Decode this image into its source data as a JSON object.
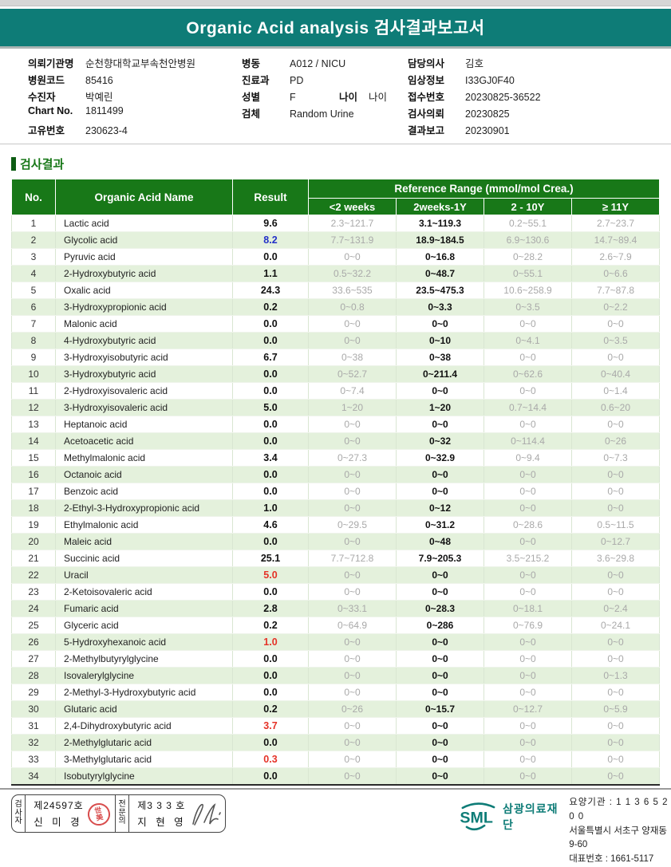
{
  "banner": {
    "title": "Organic Acid analysis 검사결과보고서"
  },
  "colors": {
    "banner_teal": "#0e7c77",
    "table_header_green": "#187818",
    "row_alt_green": "#e4f1dc",
    "abnormal_red": "#e53227",
    "abnormal_blue": "#2330c8",
    "ref_gray": "#a9a9a9",
    "seal_red": "#d43a3a"
  },
  "info": {
    "col1": [
      {
        "label": "의뢰기관명",
        "value": "순천향대학교부속천안병원"
      },
      {
        "label": "병원코드",
        "value": "85416"
      },
      {
        "label": "수진자",
        "value": "박예린"
      },
      {
        "label": "Chart No.",
        "value": "1811499"
      },
      {
        "label": "고유번호",
        "value": "230623-4"
      }
    ],
    "col2": [
      {
        "label": "병동",
        "value": "A012 / NICU"
      },
      {
        "label": "진료과",
        "value": "PD"
      },
      {
        "label": "성별",
        "value": "F",
        "extra_label": "나이",
        "extra_value": "나이"
      },
      {
        "label": "검체",
        "value": "Random Urine"
      }
    ],
    "col3": [
      {
        "label": "담당의사",
        "value": "김호"
      },
      {
        "label": "임상정보",
        "value": "I33GJ0F40"
      },
      {
        "label": "접수번호",
        "value": "20230825-36522"
      },
      {
        "label": "검사의뢰",
        "value": "20230825"
      },
      {
        "label": "결과보고",
        "value": "20230901"
      }
    ]
  },
  "section": {
    "title": "검사결과"
  },
  "table": {
    "headers": {
      "no": "No.",
      "name": "Organic Acid Name",
      "result": "Result",
      "ref_group": "Reference Range (mmol/mol Crea.)",
      "ref_cols": [
        "<2 weeks",
        "2weeks-1Y",
        "2 - 10Y",
        "≥ 11Y"
      ]
    },
    "rows": [
      {
        "no": 1,
        "name": "Lactic acid",
        "result": "9.6",
        "color": "black",
        "refs": [
          "2.3~121.7",
          "3.1~119.3",
          "0.2~55.1",
          "2.7~23.7"
        ]
      },
      {
        "no": 2,
        "name": "Glycolic acid",
        "result": "8.2",
        "color": "blue",
        "refs": [
          "7.7~131.9",
          "18.9~184.5",
          "6.9~130.6",
          "14.7~89.4"
        ]
      },
      {
        "no": 3,
        "name": "Pyruvic acid",
        "result": "0.0",
        "color": "black",
        "refs": [
          "0~0",
          "0~16.8",
          "0~28.2",
          "2.6~7.9"
        ]
      },
      {
        "no": 4,
        "name": "2-Hydroxybutyric acid",
        "result": "1.1",
        "color": "black",
        "refs": [
          "0.5~32.2",
          "0~48.7",
          "0~55.1",
          "0~6.6"
        ]
      },
      {
        "no": 5,
        "name": "Oxalic acid",
        "result": "24.3",
        "color": "black",
        "refs": [
          "33.6~535",
          "23.5~475.3",
          "10.6~258.9",
          "7.7~87.8"
        ]
      },
      {
        "no": 6,
        "name": "3-Hydroxypropionic acid",
        "result": "0.2",
        "color": "black",
        "refs": [
          "0~0.8",
          "0~3.3",
          "0~3.5",
          "0~2.2"
        ]
      },
      {
        "no": 7,
        "name": "Malonic acid",
        "result": "0.0",
        "color": "black",
        "refs": [
          "0~0",
          "0~0",
          "0~0",
          "0~0"
        ]
      },
      {
        "no": 8,
        "name": "4-Hydroxybutyric acid",
        "result": "0.0",
        "color": "black",
        "refs": [
          "0~0",
          "0~10",
          "0~4.1",
          "0~3.5"
        ]
      },
      {
        "no": 9,
        "name": "3-Hydroxyisobutyric acid",
        "result": "6.7",
        "color": "black",
        "refs": [
          "0~38",
          "0~38",
          "0~0",
          "0~0"
        ]
      },
      {
        "no": 10,
        "name": "3-Hydroxybutyric acid",
        "result": "0.0",
        "color": "black",
        "refs": [
          "0~52.7",
          "0~211.4",
          "0~62.6",
          "0~40.4"
        ]
      },
      {
        "no": 11,
        "name": "2-Hydroxyisovaleric acid",
        "result": "0.0",
        "color": "black",
        "refs": [
          "0~7.4",
          "0~0",
          "0~0",
          "0~1.4"
        ]
      },
      {
        "no": 12,
        "name": "3-Hydroxyisovaleric acid",
        "result": "5.0",
        "color": "black",
        "refs": [
          "1~20",
          "1~20",
          "0.7~14.4",
          "0.6~20"
        ]
      },
      {
        "no": 13,
        "name": "Heptanoic acid",
        "result": "0.0",
        "color": "black",
        "refs": [
          "0~0",
          "0~0",
          "0~0",
          "0~0"
        ]
      },
      {
        "no": 14,
        "name": "Acetoacetic acid",
        "result": "0.0",
        "color": "black",
        "refs": [
          "0~0",
          "0~32",
          "0~114.4",
          "0~26"
        ]
      },
      {
        "no": 15,
        "name": "Methylmalonic acid",
        "result": "3.4",
        "color": "black",
        "refs": [
          "0~27.3",
          "0~32.9",
          "0~9.4",
          "0~7.3"
        ]
      },
      {
        "no": 16,
        "name": "Octanoic acid",
        "result": "0.0",
        "color": "black",
        "refs": [
          "0~0",
          "0~0",
          "0~0",
          "0~0"
        ]
      },
      {
        "no": 17,
        "name": "Benzoic acid",
        "result": "0.0",
        "color": "black",
        "refs": [
          "0~0",
          "0~0",
          "0~0",
          "0~0"
        ]
      },
      {
        "no": 18,
        "name": "2-Ethyl-3-Hydroxypropionic acid",
        "result": "1.0",
        "color": "black",
        "refs": [
          "0~0",
          "0~12",
          "0~0",
          "0~0"
        ]
      },
      {
        "no": 19,
        "name": "Ethylmalonic acid",
        "result": "4.6",
        "color": "black",
        "refs": [
          "0~29.5",
          "0~31.2",
          "0~28.6",
          "0.5~11.5"
        ]
      },
      {
        "no": 20,
        "name": "Maleic acid",
        "result": "0.0",
        "color": "black",
        "refs": [
          "0~0",
          "0~48",
          "0~0",
          "0~12.7"
        ]
      },
      {
        "no": 21,
        "name": "Succinic acid",
        "result": "25.1",
        "color": "black",
        "refs": [
          "7.7~712.8",
          "7.9~205.3",
          "3.5~215.2",
          "3.6~29.8"
        ]
      },
      {
        "no": 22,
        "name": "Uracil",
        "result": "5.0",
        "color": "red",
        "refs": [
          "0~0",
          "0~0",
          "0~0",
          "0~0"
        ]
      },
      {
        "no": 23,
        "name": "2-Ketoisovaleric acid",
        "result": "0.0",
        "color": "black",
        "refs": [
          "0~0",
          "0~0",
          "0~0",
          "0~0"
        ]
      },
      {
        "no": 24,
        "name": "Fumaric acid",
        "result": "2.8",
        "color": "black",
        "refs": [
          "0~33.1",
          "0~28.3",
          "0~18.1",
          "0~2.4"
        ]
      },
      {
        "no": 25,
        "name": "Glyceric acid",
        "result": "0.2",
        "color": "black",
        "refs": [
          "0~64.9",
          "0~286",
          "0~76.9",
          "0~24.1"
        ]
      },
      {
        "no": 26,
        "name": "5-Hydroxyhexanoic acid",
        "result": "1.0",
        "color": "red",
        "refs": [
          "0~0",
          "0~0",
          "0~0",
          "0~0"
        ]
      },
      {
        "no": 27,
        "name": "2-Methylbutyrylglycine",
        "result": "0.0",
        "color": "black",
        "refs": [
          "0~0",
          "0~0",
          "0~0",
          "0~0"
        ]
      },
      {
        "no": 28,
        "name": "Isovalerylglycine",
        "result": "0.0",
        "color": "black",
        "refs": [
          "0~0",
          "0~0",
          "0~0",
          "0~1.3"
        ]
      },
      {
        "no": 29,
        "name": "2-Methyl-3-Hydroxybutyric acid",
        "result": "0.0",
        "color": "black",
        "refs": [
          "0~0",
          "0~0",
          "0~0",
          "0~0"
        ]
      },
      {
        "no": 30,
        "name": "Glutaric acid",
        "result": "0.2",
        "color": "black",
        "refs": [
          "0~26",
          "0~15.7",
          "0~12.7",
          "0~5.9"
        ]
      },
      {
        "no": 31,
        "name": "2,4-Dihydroxybutyric acid",
        "result": "3.7",
        "color": "red",
        "refs": [
          "0~0",
          "0~0",
          "0~0",
          "0~0"
        ]
      },
      {
        "no": 32,
        "name": "2-Methylglutaric acid",
        "result": "0.0",
        "color": "black",
        "refs": [
          "0~0",
          "0~0",
          "0~0",
          "0~0"
        ]
      },
      {
        "no": 33,
        "name": "3-Methylglutaric acid",
        "result": "0.3",
        "color": "red",
        "refs": [
          "0~0",
          "0~0",
          "0~0",
          "0~0"
        ]
      },
      {
        "no": 34,
        "name": "Isobutyrylglycine",
        "result": "0.0",
        "color": "black",
        "refs": [
          "0~0",
          "0~0",
          "0~0",
          "0~0"
        ]
      }
    ]
  },
  "footer": {
    "examiner_title": "검사자",
    "examiner_no": "제24597호",
    "examiner_name": "신 미 경",
    "specialist_title": "전문의",
    "specialist_no": "제3 3 3 호",
    "specialist_name": "지 현 영",
    "logo_text": "SML",
    "org_name": "삼광의료재단",
    "line1": "요양기관 : 1 1 3 6 5 2 0 0",
    "line2": "서울특별시 서초구 양재동 9-60",
    "line3": "대표번호 : 1661-5117"
  }
}
